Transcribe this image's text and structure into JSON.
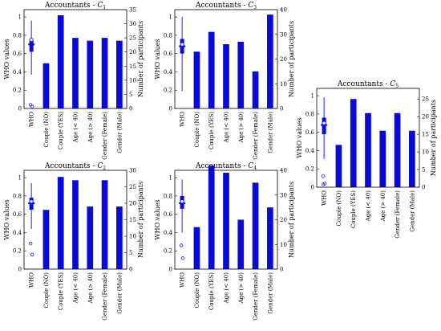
{
  "figure": {
    "bar_color": "#0a0ad8",
    "box_color": "#1a1aff",
    "text_color": "#000000"
  },
  "chart_data": [
    {
      "type": "bar",
      "title": "Accountants - ",
      "title_sub": "C",
      "title_subscript": "1",
      "ylabel": "WHO values",
      "ylabel2": "Number of participants",
      "categories": [
        "WHO",
        "Couple (NO)",
        "Couple (YES)",
        "Age (< 40)",
        "Age (> 40)",
        "Gender (Female)",
        "Gender (Male)"
      ],
      "left_ticks": [
        "0",
        "0.2",
        "0.4",
        "0.6",
        "0.8",
        "1"
      ],
      "right_ticks": [
        "0",
        "5",
        "10",
        "15",
        "20",
        "25",
        "30",
        "35"
      ],
      "right_lim": [
        0,
        35
      ],
      "bar_values": [
        16,
        33,
        25,
        24,
        25,
        24
      ],
      "boxplot": {
        "whisker_low": 0.37,
        "q1": 0.62,
        "median": 0.7,
        "q3": 0.76,
        "whisker_high": 0.96,
        "mean": 0.75,
        "outliers": [
          0.04,
          0.02
        ]
      }
    },
    {
      "type": "bar",
      "title": "Accountants - ",
      "title_sub": "C",
      "title_subscript": "3",
      "ylabel": "WHO values",
      "ylabel2": "Number of participants",
      "categories": [
        "WHO",
        "Couple (NO)",
        "Couple (YES)",
        "Age (< 40)",
        "Age (> 40)",
        "Gender (Female)",
        "Gender (Male)"
      ],
      "left_ticks": [
        "0",
        "0.2",
        "0.4",
        "0.6",
        "0.8",
        "1"
      ],
      "right_ticks": [
        "0",
        "10",
        "20",
        "30",
        "40"
      ],
      "right_lim": [
        0,
        40
      ],
      "bar_values": [
        23,
        31,
        26,
        27,
        15,
        38
      ],
      "boxplot": {
        "whisker_low": 0.19,
        "q1": 0.6,
        "median": 0.68,
        "q3": 0.76,
        "whisker_high": 1.0,
        "mean": 0.7,
        "outliers": []
      }
    },
    {
      "type": "bar",
      "title": "Accountants - ",
      "title_sub": "C",
      "title_subscript": "5",
      "ylabel": "WHO values",
      "ylabel2": "Number of participants",
      "categories": [
        "WHO",
        "Couple (NO)",
        "Couple (YES)",
        "Age (< 40)",
        "Age (> 40)",
        "Gender (Female)",
        "Gender (Male)"
      ],
      "left_ticks": [
        "0",
        "0.2",
        "0.4",
        "0.6",
        "0.8",
        "1"
      ],
      "right_ticks": [
        "0",
        "5",
        "10",
        "15",
        "20",
        "25"
      ],
      "right_lim": [
        0,
        28
      ],
      "bar_values": [
        12,
        25,
        21,
        16,
        21,
        16
      ],
      "boxplot": {
        "whisker_low": 0.31,
        "q1": 0.58,
        "median": 0.68,
        "q3": 0.76,
        "whisker_high": 0.98,
        "mean": 0.7,
        "outliers": [
          0.12,
          0.04,
          0.03
        ]
      }
    },
    {
      "type": "bar",
      "title": "Accountants - ",
      "title_sub": "C",
      "title_subscript": "2",
      "ylabel": "WHO values",
      "ylabel2": "Number of participants",
      "categories": [
        "WHO",
        "Couple (NO)",
        "Couple (YES)",
        "Age (< 40)",
        "Age (> 40)",
        "Gender (Female)",
        "Gender (Male)"
      ],
      "left_ticks": [
        "0",
        "0.2",
        "0.4",
        "0.6",
        "0.8",
        "1"
      ],
      "right_ticks": [
        "0",
        "5",
        "10",
        "15",
        "20",
        "25",
        "30"
      ],
      "right_lim": [
        0,
        30
      ],
      "bar_values": [
        18,
        28,
        27,
        19,
        27,
        19
      ],
      "boxplot": {
        "whisker_low": 0.44,
        "q1": 0.65,
        "median": 0.72,
        "q3": 0.78,
        "whisker_high": 0.94,
        "mean": 0.74,
        "outliers": [
          0.28,
          0.16
        ]
      }
    },
    {
      "type": "bar",
      "title": "Accountants - ",
      "title_sub": "C",
      "title_subscript": "4",
      "ylabel": "WHO values",
      "ylabel2": "Number of participants",
      "categories": [
        "WHO",
        "Couple (NO)",
        "Couple (YES)",
        "Age (< 40)",
        "Age (> 40)",
        "Gender (Female)",
        "Gender (Male)"
      ],
      "left_ticks": [
        "0",
        "0.2",
        "0.4",
        "0.6",
        "0.8",
        "1"
      ],
      "right_ticks": [
        "0",
        "10",
        "20",
        "30",
        "40"
      ],
      "right_lim": [
        0,
        40
      ],
      "bar_values": [
        17,
        42,
        39,
        20,
        35,
        25
      ],
      "boxplot": {
        "whisker_low": 0.4,
        "q1": 0.66,
        "median": 0.72,
        "q3": 0.8,
        "whisker_high": 0.98,
        "mean": 0.74,
        "outliers": [
          0.26,
          0.12
        ]
      }
    }
  ]
}
